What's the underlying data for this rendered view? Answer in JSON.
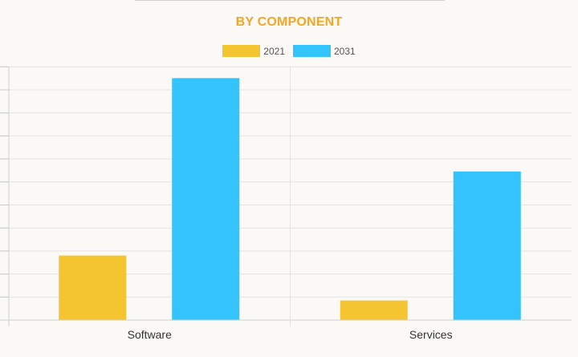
{
  "chart_data": {
    "type": "bar",
    "title": "BY COMPONENT",
    "categories": [
      "Software",
      "Services"
    ],
    "series": [
      {
        "name": "2021",
        "values": [
          2.8,
          0.85
        ],
        "color": "#f4c531"
      },
      {
        "name": "2031",
        "values": [
          10.5,
          6.45
        ],
        "color": "#33c4fd"
      }
    ],
    "ylim": [
      0,
      11
    ],
    "grid": true,
    "xlabel": "",
    "ylabel": "",
    "legend": "top-center"
  }
}
